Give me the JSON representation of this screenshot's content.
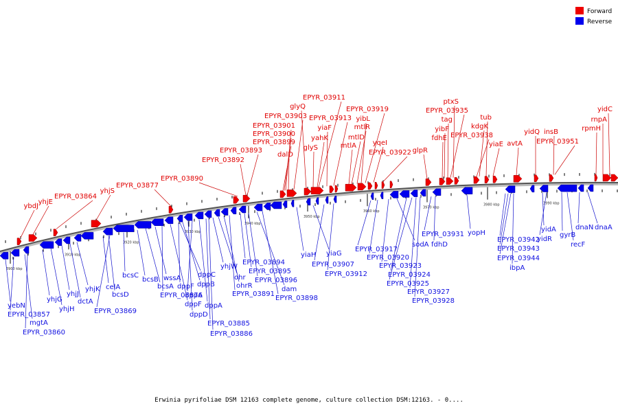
{
  "legend": {
    "forward": {
      "label": "Forward",
      "color": "#ee0000"
    },
    "reverse": {
      "label": "Reverse",
      "color": "#0000ee"
    }
  },
  "caption": "Erwinia pyrifoliae DSM 12163 complete genome, culture collection DSM:12163. - 0....",
  "axis": {
    "unit": "kbp",
    "ticks": [
      {
        "label": "3900 kbp"
      },
      {
        "label": "3910 kbp"
      },
      {
        "label": "3920 kbp"
      },
      {
        "label": "3930 kbp"
      },
      {
        "label": "3940 kbp"
      },
      {
        "label": "3950 kbp"
      },
      {
        "label": "3960 kbp"
      },
      {
        "label": "3970 kbp"
      },
      {
        "label": "3980 kbp"
      },
      {
        "label": "3990 kbp"
      }
    ]
  },
  "forward_genes": [
    "ybdJ",
    "yhjE",
    "EPYR_03864",
    "yhjS",
    "EPYR_03877",
    "EPYR_03890",
    "EPYR_03892",
    "EPYR_03893",
    "EPYR_03899",
    "EPYR_03900",
    "EPYR_03901",
    "EPYR_03903",
    "dalD",
    "glyQ",
    "glyS",
    "EPYR_03911",
    "yahK",
    "yiaF",
    "EPYR_03913",
    "mtlA",
    "mtlD",
    "mtlR",
    "yibL",
    "EPYR_03919",
    "yqeI",
    "EPYR_03922",
    "glpR",
    "fdhE",
    "yibF",
    "tag",
    "EPYR_03935",
    "ptxS",
    "EPYR_03938",
    "kdgK",
    "tub",
    "yiaE",
    "avtA",
    "yidQ",
    "insB",
    "EPYR_03951",
    "rpmH",
    "rnpA",
    "yidC"
  ],
  "reverse_genes": [
    "yebN",
    "EPYR_03857",
    "mgtA",
    "EPYR_03860",
    "yhjG",
    "yhjH",
    "yhjJ",
    "dctA",
    "yhjK",
    "celA",
    "bcsD",
    "EPYR_03869",
    "bcsC",
    "bcsB",
    "bcsA",
    "wssA",
    "EPYR_03876",
    "dppF",
    "dppC",
    "dppF",
    "dppB",
    "dppD",
    "dppA",
    "dppA",
    "EPYR_03885",
    "EPYR_03886",
    "yhjW",
    "ohr",
    "ohrR",
    "EPYR_03891",
    "EPYR_03894",
    "EPYR_03895",
    "EPYR_03896",
    "dam",
    "EPYR_03898",
    "yiaH",
    "yiaG",
    "EPYR_03907",
    "EPYR_03912",
    "EPYR_03917",
    "EPYR_03920",
    "EPYR_03923",
    "sodA",
    "EPYR_03924",
    "EPYR_03925",
    "EPYR_03927",
    "EPYR_03928",
    "EPYR_03931",
    "fdhD",
    "yopH",
    "EPYR_03942",
    "EPYR_03943",
    "EPYR_03944",
    "ibpA",
    "yidA",
    "yidR",
    "gyrB",
    "recF",
    "dnaN",
    "dnaA"
  ]
}
